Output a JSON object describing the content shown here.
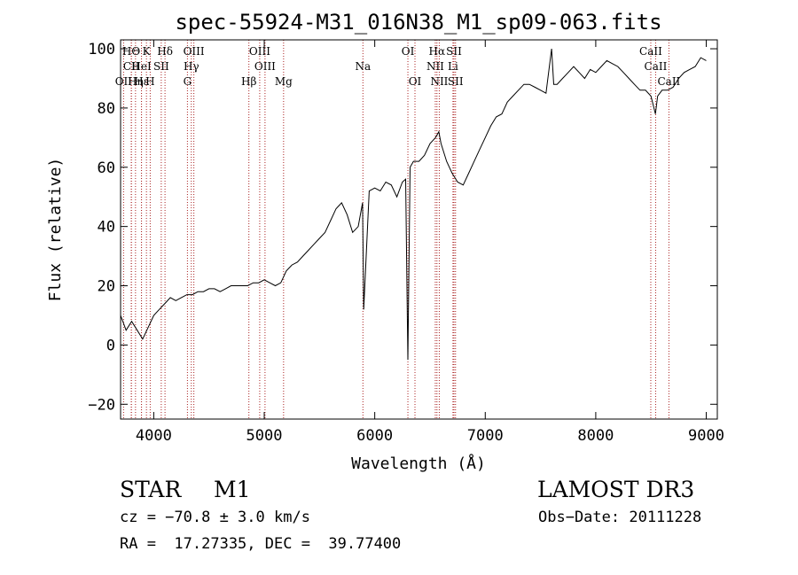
{
  "chart_data": {
    "type": "line",
    "title": "spec-55924-M31_016N38_M1_sp09-063.fits",
    "xlabel": "Wavelength (Å)",
    "ylabel": "Flux (relative)",
    "xlim": [
      3700,
      9100
    ],
    "ylim": [
      -25,
      103
    ],
    "xticks": [
      4000,
      5000,
      6000,
      7000,
      8000,
      9000
    ],
    "yticks": [
      -20,
      0,
      20,
      40,
      60,
      80,
      100
    ],
    "grid": false,
    "series": [
      {
        "name": "spectrum",
        "x": [
          3700,
          3750,
          3800,
          3850,
          3900,
          3950,
          4000,
          4050,
          4100,
          4150,
          4200,
          4250,
          4300,
          4350,
          4400,
          4450,
          4500,
          4550,
          4600,
          4650,
          4700,
          4750,
          4800,
          4850,
          4900,
          4950,
          5000,
          5050,
          5100,
          5150,
          5200,
          5250,
          5300,
          5350,
          5400,
          5450,
          5500,
          5550,
          5600,
          5650,
          5700,
          5750,
          5800,
          5850,
          5890,
          5900,
          5950,
          6000,
          6050,
          6100,
          6150,
          6200,
          6250,
          6280,
          6300,
          6320,
          6350,
          6400,
          6450,
          6500,
          6550,
          6580,
          6600,
          6650,
          6700,
          6750,
          6800,
          6850,
          6900,
          6950,
          7000,
          7050,
          7100,
          7150,
          7200,
          7250,
          7300,
          7350,
          7400,
          7450,
          7500,
          7550,
          7600,
          7620,
          7650,
          7700,
          7750,
          7800,
          7850,
          7900,
          7950,
          8000,
          8050,
          8100,
          8150,
          8200,
          8250,
          8300,
          8350,
          8400,
          8450,
          8500,
          8540,
          8560,
          8600,
          8650,
          8700,
          8750,
          8800,
          8850,
          8900,
          8950,
          9000
        ],
        "y": [
          10,
          5,
          8,
          5,
          2,
          6,
          10,
          12,
          14,
          16,
          15,
          16,
          17,
          17,
          18,
          18,
          19,
          19,
          18,
          19,
          20,
          20,
          20,
          20,
          21,
          21,
          22,
          21,
          20,
          21,
          25,
          27,
          28,
          30,
          32,
          34,
          36,
          38,
          42,
          46,
          48,
          44,
          38,
          40,
          48,
          12,
          52,
          53,
          52,
          55,
          54,
          50,
          55,
          56,
          -5,
          60,
          62,
          62,
          64,
          68,
          70,
          72,
          68,
          62,
          58,
          55,
          54,
          58,
          62,
          66,
          70,
          74,
          77,
          78,
          82,
          84,
          86,
          88,
          88,
          87,
          86,
          85,
          100,
          88,
          88,
          90,
          92,
          94,
          92,
          90,
          93,
          92,
          94,
          96,
          95,
          94,
          92,
          90,
          88,
          86,
          86,
          84,
          78,
          84,
          86,
          86,
          87,
          90,
          92,
          93,
          94,
          97,
          96
        ]
      }
    ],
    "lines": [
      {
        "name": "HΘ",
        "x": 3797,
        "row": 1
      },
      {
        "name": "CII",
        "x": 3798,
        "row": 2
      },
      {
        "name": "OII",
        "x": 3727,
        "row": 3
      },
      {
        "name": "Hε",
        "x": 3889,
        "row": 3
      },
      {
        "name": "K",
        "x": 3934,
        "row": 1
      },
      {
        "name": "HeI",
        "x": 3889,
        "row": 2
      },
      {
        "name": "Hη",
        "x": 3835,
        "row": 3
      },
      {
        "name": "SII",
        "x": 4068,
        "row": 2
      },
      {
        "name": "H",
        "x": 3968,
        "row": 3
      },
      {
        "name": "Hδ",
        "x": 4102,
        "row": 1
      },
      {
        "name": "OIII",
        "x": 4363,
        "row": 1
      },
      {
        "name": "Hγ",
        "x": 4340,
        "row": 2
      },
      {
        "name": "G",
        "x": 4305,
        "row": 3
      },
      {
        "name": "Hβ",
        "x": 4861,
        "row": 3
      },
      {
        "name": "OIII",
        "x": 4959,
        "row": 1
      },
      {
        "name": "OIII",
        "x": 5007,
        "row": 2
      },
      {
        "name": "Mg",
        "x": 5175,
        "row": 3
      },
      {
        "name": "Na",
        "x": 5893,
        "row": 2
      },
      {
        "name": "OI",
        "x": 6300,
        "row": 1
      },
      {
        "name": "OI",
        "x": 6364,
        "row": 3
      },
      {
        "name": "Hα",
        "x": 6563,
        "row": 1
      },
      {
        "name": "NII",
        "x": 6548,
        "row": 2
      },
      {
        "name": "NII",
        "x": 6584,
        "row": 3
      },
      {
        "name": "SII",
        "x": 6717,
        "row": 1
      },
      {
        "name": "Li",
        "x": 6708,
        "row": 2
      },
      {
        "name": "SII",
        "x": 6731,
        "row": 3
      },
      {
        "name": "CaII",
        "x": 8498,
        "row": 1
      },
      {
        "name": "CaII",
        "x": 8542,
        "row": 2
      },
      {
        "name": "CaII",
        "x": 8662,
        "row": 3
      }
    ]
  },
  "info": {
    "object_class": "STAR",
    "subclass": "M1",
    "survey": "LAMOST DR3",
    "cz": "cz = −70.8 ± 3.0 km/s",
    "obs_date": "Obs−Date: 20111228",
    "coords": "RA =  17.27335, DEC =  39.77400"
  },
  "colors": {
    "spectrum": "#000000",
    "line_marker": "#aa2222",
    "axis": "#000000"
  }
}
